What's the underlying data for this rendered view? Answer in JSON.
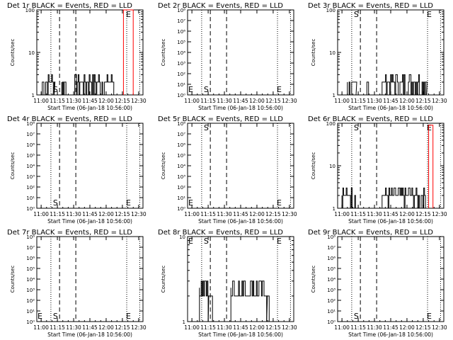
{
  "chart_data": [
    {
      "title": "Det 1r BLACK = Events, RED = LLD",
      "type": "line",
      "scale": "log",
      "ylim": [
        1,
        100
      ],
      "yticks": [
        "1",
        "10",
        "100"
      ],
      "ylabel": "Counts/sec",
      "xlabel": "Start Time (06-Jan-18 10:56:00)",
      "xticks": [
        "11:00",
        "11:15",
        "11:30",
        "11:45",
        "12:00",
        "12:15",
        "12:30"
      ],
      "markers": {
        "S": "S",
        "E": "E",
        "s_at": "bottom",
        "e_at": "top"
      },
      "events": [
        {
          "name": "Events",
          "color": "#000000",
          "segments": [
            {
              "x0": "11:01",
              "x1": "11:12",
              "level": 2,
              "jitter": [
                1,
                3
              ]
            },
            {
              "x0": "11:19",
              "x1": "11:24",
              "level": 2,
              "jitter": [
                1,
                3
              ]
            },
            {
              "x0": "11:31",
              "x1": "12:07",
              "level": 2,
              "jitter": [
                1,
                3
              ]
            }
          ]
        },
        {
          "name": "LLD",
          "color": "#ff0000",
          "segments": [
            {
              "x0": "12:16",
              "x1": "12:25",
              "level": 100
            }
          ]
        }
      ]
    },
    {
      "title": "Det 2r BLACK = Events, RED = LLD",
      "type": "line",
      "scale": "pow",
      "ylim": [
        1,
        100000000
      ],
      "yticks": [
        "10⁰",
        "10¹",
        "10²",
        "10³",
        "10⁴",
        "10⁵",
        "10⁶",
        "10⁷",
        "10⁸"
      ],
      "ylabel": "Counts/sec",
      "xlabel": "Start Time (06-Jan-18 10:56:00)",
      "xticks": [
        "11:00",
        "11:15",
        "11:30",
        "11:45",
        "12:00",
        "12:15",
        "12:30"
      ],
      "markers": {
        "S": "S",
        "E": "E",
        "s_at": "bottom",
        "e_at": "bottom",
        "left_label": "E"
      },
      "events": []
    },
    {
      "title": "Det 3r BLACK = Events, RED = LLD",
      "type": "line",
      "scale": "log",
      "ylim": [
        1,
        100
      ],
      "yticks": [
        "1",
        "10",
        "100"
      ],
      "ylabel": "Counts/sec",
      "xlabel": "Start Time (06-Jan-18 10:56:00)",
      "xticks": [
        "11:00",
        "11:15",
        "11:30",
        "11:45",
        "12:00",
        "12:15",
        "12:30"
      ],
      "markers": {
        "S": "S",
        "E": "E",
        "s_at": "top",
        "e_at": "top"
      },
      "events": [
        {
          "name": "Events",
          "color": "#000000",
          "segments": [
            {
              "x0": "11:05",
              "x1": "11:13",
              "level": 2,
              "jitter": [
                1,
                2
              ]
            },
            {
              "x0": "11:23",
              "x1": "11:27",
              "level": 1.5,
              "jitter": [
                1,
                2
              ]
            },
            {
              "x0": "11:37",
              "x1": "12:18",
              "level": 2,
              "jitter": [
                1,
                3
              ]
            }
          ]
        }
      ]
    },
    {
      "title": "Det 4r BLACK = Events, RED = LLD",
      "type": "line",
      "scale": "pow",
      "ylim": [
        1,
        100000000
      ],
      "yticks": [
        "10⁰",
        "10¹",
        "10²",
        "10³",
        "10⁴",
        "10⁵",
        "10⁶",
        "10⁷",
        "10⁸"
      ],
      "ylabel": "Counts/sec",
      "xlabel": "Start Time (06-Jan-18 10:56:00)",
      "xticks": [
        "11:00",
        "11:15",
        "11:30",
        "11:45",
        "12:00",
        "12:15",
        "12:30"
      ],
      "markers": {
        "S": "S",
        "E": "E",
        "s_at": "bottom",
        "e_at": "bottom"
      },
      "events": []
    },
    {
      "title": "Det 5r BLACK = Events, RED = LLD",
      "type": "line",
      "scale": "pow",
      "ylim": [
        1,
        100000000
      ],
      "yticks": [
        "10⁰",
        "10¹",
        "10²",
        "10³",
        "10⁴",
        "10⁵",
        "10⁶",
        "10⁷",
        "10⁸"
      ],
      "ylabel": "Counts/sec",
      "xlabel": "Start Time (06-Jan-18 10:56:00)",
      "xticks": [
        "11:00",
        "11:15",
        "11:30",
        "11:45",
        "12:00",
        "12:15",
        "12:30"
      ],
      "markers": {
        "S": "S",
        "E": "E",
        "s_at": "top",
        "e_at": "bottom",
        "left_label": "E"
      },
      "events": []
    },
    {
      "title": "Det 6r BLACK = Events, RED = LLD",
      "type": "line",
      "scale": "log",
      "ylim": [
        1,
        100
      ],
      "yticks": [
        "1",
        "10",
        "100"
      ],
      "ylabel": "Counts/sec",
      "xlabel": "Start Time (06-Jan-18 10:56:00)",
      "xticks": [
        "11:00",
        "11:15",
        "11:30",
        "11:45",
        "12:00",
        "12:15",
        "12:30"
      ],
      "markers": {
        "S": "S",
        "E": "E",
        "s_at": "top",
        "e_at": "top"
      },
      "events": [
        {
          "name": "Events",
          "color": "#000000",
          "segments": [
            {
              "x0": "11:00",
              "x1": "11:13",
              "level": 2,
              "jitter": [
                1,
                3
              ]
            },
            {
              "x0": "11:37",
              "x1": "12:17",
              "level": 2,
              "jitter": [
                1,
                3
              ]
            }
          ]
        },
        {
          "name": "LLD",
          "color": "#ff0000",
          "segments": [
            {
              "x0": "12:20",
              "x1": "12:24",
              "level": 90
            }
          ]
        }
      ]
    },
    {
      "title": "Det 7r BLACK = Events, RED = LLD",
      "type": "line",
      "scale": "pow",
      "ylim": [
        1,
        100000000
      ],
      "yticks": [
        "10⁰",
        "10¹",
        "10²",
        "10³",
        "10⁴",
        "10⁵",
        "10⁶",
        "10⁷",
        "10⁸"
      ],
      "ylabel": "Counts/sec",
      "xlabel": "Start Time (06-Jan-18 10:56:00)",
      "xticks": [
        "11:00",
        "11:15",
        "11:30",
        "11:45",
        "12:00",
        "12:15",
        "12:30"
      ],
      "markers": {
        "S": "S",
        "E": "E",
        "s_at": "bottom",
        "e_at": "bottom",
        "left_label": "E"
      },
      "events": []
    },
    {
      "title": "Det 8r BLACK = Events, RED = LLD",
      "type": "line",
      "scale": "log",
      "ylim": [
        1,
        10
      ],
      "yticks": [
        "1",
        "10"
      ],
      "ylabel": "Counts/sec",
      "xlabel": "Start Time (06-Jan-18 10:56:00)",
      "xticks": [
        "11:00",
        "11:15",
        "11:30",
        "11:45",
        "12:00",
        "12:15",
        "12:30"
      ],
      "markers": {
        "S": "S",
        "E": "E",
        "s_at": "top",
        "e_at": "top",
        "left_label": "E"
      },
      "events": [
        {
          "name": "Events",
          "color": "#000000",
          "segments": [
            {
              "x0": "11:07",
              "x1": "11:15",
              "level": 2.5,
              "jitter": [
                2,
                3
              ]
            },
            {
              "x0": "11:15",
              "x1": "11:19",
              "level": 2,
              "jitter": [
                2,
                2
              ]
            },
            {
              "x0": "11:36",
              "x1": "12:09",
              "level": 2.5,
              "jitter": [
                2,
                3
              ]
            },
            {
              "x0": "12:09",
              "x1": "12:13",
              "level": 1.5,
              "jitter": [
                1,
                2
              ]
            }
          ]
        }
      ]
    },
    {
      "title": "Det 9r BLACK = Events, RED = LLD",
      "type": "line",
      "scale": "pow",
      "ylim": [
        1,
        100000000
      ],
      "yticks": [
        "10⁰",
        "10¹",
        "10²",
        "10³",
        "10⁴",
        "10⁵",
        "10⁶",
        "10⁷",
        "10⁸"
      ],
      "ylabel": "Counts/sec",
      "xlabel": "Start Time (06-Jan-18 10:56:00)",
      "xticks": [
        "11:00",
        "11:15",
        "11:30",
        "11:45",
        "12:00",
        "12:15",
        "12:30"
      ],
      "markers": {
        "S": "S",
        "E": "E",
        "s_at": "bottom",
        "e_at": "bottom"
      },
      "events": []
    }
  ],
  "time_axis": {
    "start": "10:56",
    "end": "12:34"
  },
  "boundaries": {
    "dotted": [
      "11:09",
      "12:19",
      "12:31"
    ],
    "dashed": [
      "11:17",
      "11:32"
    ]
  }
}
